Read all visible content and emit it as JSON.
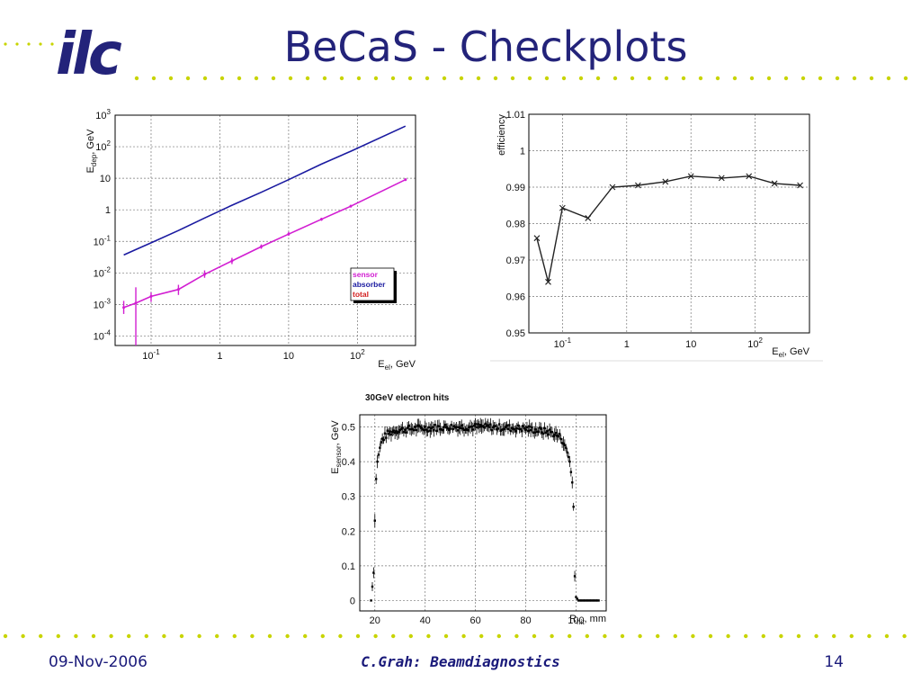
{
  "slide": {
    "title": "BeCaS - Checkplots",
    "logo_text": "ilc",
    "footer": {
      "date": "09-Nov-2006",
      "center": "C.Grah: Beamdiagnostics",
      "page": "14"
    },
    "colors": {
      "title": "#23237a",
      "logo": "#23237a",
      "dots": "#c8d400"
    }
  },
  "chart_data": [
    {
      "type": "line",
      "xscale": "log",
      "yscale": "log",
      "xlim": [
        0.03,
        700
      ],
      "ylim": [
        5e-05,
        1000
      ],
      "xlabel": "E_el, GeV",
      "ylabel": "E_dep, GeV",
      "x_ticks": [
        "10^-1",
        "1",
        "10",
        "10^2"
      ],
      "y_ticks": [
        "10^-4",
        "10^-3",
        "10^-2",
        "10^-1",
        "1",
        "10",
        "10^2",
        "10^3"
      ],
      "legend_entries": [
        "sensor",
        "absorber",
        "total"
      ],
      "legend_position": "bottom-right",
      "series": [
        {
          "name": "absorber",
          "color": "#1a1aa0",
          "x": [
            0.04,
            0.06,
            0.1,
            0.25,
            0.6,
            1.5,
            4,
            10,
            30,
            80,
            500
          ],
          "y": [
            0.037,
            0.055,
            0.09,
            0.22,
            0.55,
            1.4,
            3.6,
            9,
            28,
            72,
            450
          ]
        },
        {
          "name": "sensor",
          "color": "#d21ed2",
          "x": [
            0.04,
            0.06,
            0.1,
            0.25,
            0.6,
            1.5,
            4,
            10,
            30,
            80,
            500
          ],
          "y": [
            0.0008,
            0.0011,
            0.0018,
            0.003,
            0.009,
            0.024,
            0.068,
            0.17,
            0.5,
            1.3,
            9
          ],
          "err_low": [
            0.0003,
            0.00105,
            0.0006,
            0.001,
            0.002,
            0.005,
            0.01,
            0.02,
            0.05,
            0.1,
            0.5
          ],
          "err_high": [
            0.0005,
            0.0024,
            0.0006,
            0.0012,
            0.003,
            0.006,
            0.012,
            0.03,
            0.06,
            0.15,
            1
          ]
        }
      ],
      "grid": true
    },
    {
      "type": "line",
      "xscale": "log",
      "xlim": [
        0.03,
        700
      ],
      "ylim": [
        0.95,
        1.01
      ],
      "xlabel": "E_el, GeV",
      "ylabel": "efficiency",
      "x_ticks": [
        "10^-1",
        "1",
        "10",
        "10^2"
      ],
      "y_ticks": [
        "0.95",
        "0.96",
        "0.97",
        "0.98",
        "0.99",
        "1",
        "1.01"
      ],
      "series": [
        {
          "color": "#222222",
          "x": [
            0.04,
            0.06,
            0.1,
            0.25,
            0.6,
            1.5,
            4,
            10,
            30,
            80,
            200,
            500
          ],
          "y": [
            0.976,
            0.964,
            0.9843,
            0.9815,
            0.99,
            0.9905,
            0.9915,
            0.993,
            0.9925,
            0.993,
            0.991,
            0.9905
          ]
        }
      ],
      "grid": true
    },
    {
      "type": "scatter",
      "title": "30GeV electron hits",
      "xlim": [
        14,
        112
      ],
      "ylim": [
        -0.03,
        0.535
      ],
      "xlabel": "R_hit, mm",
      "ylabel": "E_sensor, GeV",
      "x_ticks": [
        "20",
        "40",
        "60",
        "80",
        "100"
      ],
      "y_ticks": [
        "0",
        "0.1",
        "0.2",
        "0.3",
        "0.4",
        "0.5"
      ],
      "profile": {
        "x": [
          18.5,
          19.5,
          20,
          20.5,
          21,
          22,
          23,
          25,
          28,
          35,
          50,
          65,
          80,
          90,
          94,
          96,
          97.5,
          98.5,
          99,
          99.5,
          100,
          101,
          105,
          109
        ],
        "y": [
          0,
          0.08,
          0.23,
          0.35,
          0.4,
          0.44,
          0.465,
          0.48,
          0.49,
          0.495,
          0.5,
          0.5,
          0.495,
          0.485,
          0.47,
          0.44,
          0.4,
          0.34,
          0.27,
          0.07,
          0.01,
          0,
          0,
          0
        ]
      },
      "grid": true
    }
  ]
}
